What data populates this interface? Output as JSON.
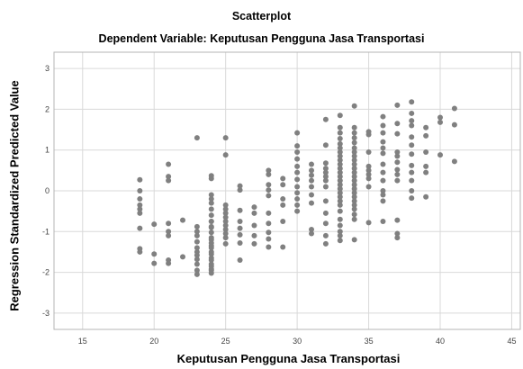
{
  "chart_data": {
    "type": "scatter",
    "title": "Scatterplot",
    "subtitle": "Dependent Variable: Keputusan Pengguna Jasa Transportasi",
    "xlabel": "Keputusan Pengguna Jasa Transportasi",
    "ylabel": "Regression Standardized Predicted Value",
    "xlim": [
      13,
      45.6
    ],
    "ylim": [
      -3.4,
      3.4
    ],
    "xticks": [
      "15",
      "20",
      "25",
      "30",
      "35",
      "40",
      "45"
    ],
    "yticks": [
      "3",
      "2",
      "1",
      "0",
      "-1",
      "-2",
      "-3"
    ],
    "grid": true,
    "point_color": "#808080",
    "points": [
      [
        19,
        0.27
      ],
      [
        19,
        0.0
      ],
      [
        19,
        -0.2
      ],
      [
        19,
        -0.35
      ],
      [
        19,
        -0.45
      ],
      [
        19,
        -0.55
      ],
      [
        19,
        -0.92
      ],
      [
        19,
        -1.42
      ],
      [
        19,
        -1.5
      ],
      [
        20,
        -0.82
      ],
      [
        20,
        -1.55
      ],
      [
        20,
        -1.78
      ],
      [
        21,
        0.65
      ],
      [
        21,
        0.35
      ],
      [
        21,
        0.25
      ],
      [
        21,
        -0.8
      ],
      [
        21,
        -1.0
      ],
      [
        21,
        -1.1
      ],
      [
        21,
        -1.7
      ],
      [
        21,
        -1.78
      ],
      [
        22,
        -0.72
      ],
      [
        22,
        -1.62
      ],
      [
        23,
        1.3
      ],
      [
        23,
        -0.88
      ],
      [
        23,
        -1.0
      ],
      [
        23,
        -1.1
      ],
      [
        23,
        -1.25
      ],
      [
        23,
        -1.4
      ],
      [
        23,
        -1.5
      ],
      [
        23,
        -1.58
      ],
      [
        23,
        -1.68
      ],
      [
        23,
        -1.8
      ],
      [
        23,
        -1.95
      ],
      [
        23,
        -2.05
      ],
      [
        24,
        -0.75
      ],
      [
        24,
        -0.88
      ],
      [
        24,
        -1.2
      ],
      [
        24,
        -1.35
      ],
      [
        24,
        -1.5
      ],
      [
        24,
        -1.65
      ],
      [
        24,
        -1.8
      ],
      [
        24,
        -1.92
      ],
      [
        24,
        -2.02
      ],
      [
        24,
        0.37
      ],
      [
        24,
        0.3
      ],
      [
        24,
        -0.1
      ],
      [
        24,
        -0.2
      ],
      [
        24,
        -0.3
      ],
      [
        24,
        -0.45
      ],
      [
        24,
        -0.6
      ],
      [
        24,
        -0.75
      ],
      [
        24,
        -0.9
      ],
      [
        24,
        -1.02
      ],
      [
        24,
        -1.15
      ],
      [
        24,
        -1.28
      ],
      [
        24,
        -1.4
      ],
      [
        24,
        -1.55
      ],
      [
        24,
        -1.7
      ],
      [
        24,
        -1.85
      ],
      [
        24,
        -1.95
      ],
      [
        25,
        1.3
      ],
      [
        25,
        0.88
      ],
      [
        25,
        -0.35
      ],
      [
        25,
        -0.45
      ],
      [
        25,
        -0.55
      ],
      [
        25,
        -0.65
      ],
      [
        25,
        -0.75
      ],
      [
        25,
        -0.85
      ],
      [
        25,
        -0.95
      ],
      [
        25,
        -1.05
      ],
      [
        25,
        -1.15
      ],
      [
        25,
        -1.3
      ],
      [
        26,
        0.12
      ],
      [
        26,
        0.02
      ],
      [
        26,
        -0.48
      ],
      [
        26,
        -0.75
      ],
      [
        26,
        -0.92
      ],
      [
        26,
        -1.08
      ],
      [
        26,
        -1.28
      ],
      [
        26,
        -1.7
      ],
      [
        27,
        -0.4
      ],
      [
        27,
        -0.55
      ],
      [
        27,
        -0.85
      ],
      [
        27,
        -1.1
      ],
      [
        27,
        -1.3
      ],
      [
        28,
        0.5
      ],
      [
        28,
        0.4
      ],
      [
        28,
        0.15
      ],
      [
        28,
        0.02
      ],
      [
        28,
        -0.12
      ],
      [
        28,
        -0.55
      ],
      [
        28,
        -0.8
      ],
      [
        28,
        -1.02
      ],
      [
        28,
        -1.18
      ],
      [
        28,
        -1.38
      ],
      [
        29,
        0.3
      ],
      [
        29,
        0.15
      ],
      [
        29,
        -0.2
      ],
      [
        29,
        -0.35
      ],
      [
        29,
        -0.75
      ],
      [
        29,
        -1.38
      ],
      [
        30,
        1.42
      ],
      [
        30,
        1.1
      ],
      [
        30,
        0.95
      ],
      [
        30,
        0.78
      ],
      [
        30,
        0.6
      ],
      [
        30,
        0.45
      ],
      [
        30,
        0.28
      ],
      [
        30,
        0.1
      ],
      [
        30,
        -0.05
      ],
      [
        30,
        -0.2
      ],
      [
        30,
        -0.35
      ],
      [
        30,
        -0.5
      ],
      [
        31,
        0.65
      ],
      [
        31,
        0.5
      ],
      [
        31,
        0.38
      ],
      [
        31,
        0.25
      ],
      [
        31,
        0.1
      ],
      [
        31,
        -0.1
      ],
      [
        31,
        -0.3
      ],
      [
        31,
        -0.95
      ],
      [
        31,
        -1.05
      ],
      [
        32,
        1.12
      ],
      [
        32,
        0.55
      ],
      [
        32,
        0.45
      ],
      [
        32,
        0.35
      ],
      [
        32,
        0.25
      ],
      [
        32,
        0.1
      ],
      [
        32,
        -0.25
      ],
      [
        32,
        -0.8
      ],
      [
        32,
        -1.1
      ],
      [
        32,
        -1.3
      ],
      [
        33,
        1.28
      ],
      [
        33,
        1.15
      ],
      [
        33,
        1.05
      ],
      [
        33,
        0.95
      ],
      [
        33,
        0.85
      ],
      [
        33,
        0.75
      ],
      [
        33,
        0.65
      ],
      [
        33,
        0.55
      ],
      [
        33,
        0.45
      ],
      [
        33,
        0.35
      ],
      [
        33,
        0.25
      ],
      [
        33,
        0.15
      ],
      [
        33,
        0.05
      ],
      [
        33,
        -0.05
      ],
      [
        33,
        -0.15
      ],
      [
        33,
        -0.25
      ],
      [
        33,
        -0.35
      ],
      [
        33,
        -0.5
      ],
      [
        33,
        -0.7
      ],
      [
        33,
        -0.85
      ],
      [
        33,
        -1.0
      ],
      [
        33,
        -1.1
      ],
      [
        33,
        -1.22
      ],
      [
        32,
        1.75
      ],
      [
        32,
        0.68
      ],
      [
        32,
        -0.55
      ],
      [
        34,
        2.08
      ],
      [
        34,
        1.55
      ],
      [
        34,
        1.42
      ],
      [
        34,
        1.3
      ],
      [
        34,
        1.18
      ],
      [
        34,
        1.05
      ],
      [
        34,
        0.95
      ],
      [
        34,
        0.85
      ],
      [
        34,
        0.75
      ],
      [
        34,
        0.65
      ],
      [
        34,
        0.55
      ],
      [
        34,
        0.45
      ],
      [
        34,
        0.35
      ],
      [
        34,
        0.25
      ],
      [
        34,
        0.15
      ],
      [
        34,
        0.05
      ],
      [
        34,
        -0.05
      ],
      [
        34,
        -0.15
      ],
      [
        34,
        -0.25
      ],
      [
        34,
        -0.35
      ],
      [
        34,
        -0.45
      ],
      [
        34,
        -0.58
      ],
      [
        34,
        -0.7
      ],
      [
        34,
        -1.2
      ],
      [
        33,
        1.85
      ],
      [
        33,
        1.55
      ],
      [
        33,
        1.42
      ],
      [
        35,
        1.45
      ],
      [
        35,
        1.38
      ],
      [
        35,
        0.95
      ],
      [
        35,
        0.6
      ],
      [
        35,
        0.5
      ],
      [
        35,
        0.4
      ],
      [
        35,
        0.3
      ],
      [
        35,
        0.1
      ],
      [
        35,
        -0.78
      ],
      [
        36,
        1.82
      ],
      [
        36,
        1.6
      ],
      [
        36,
        1.42
      ],
      [
        36,
        1.2
      ],
      [
        36,
        1.05
      ],
      [
        36,
        0.92
      ],
      [
        36,
        0.65
      ],
      [
        36,
        0.45
      ],
      [
        36,
        0.25
      ],
      [
        36,
        0.0
      ],
      [
        36,
        -0.1
      ],
      [
        36,
        -0.25
      ],
      [
        36,
        -0.75
      ],
      [
        37,
        2.1
      ],
      [
        37,
        1.65
      ],
      [
        37,
        1.4
      ],
      [
        37,
        0.95
      ],
      [
        37,
        0.85
      ],
      [
        37,
        0.7
      ],
      [
        37,
        0.52
      ],
      [
        37,
        0.4
      ],
      [
        37,
        0.25
      ],
      [
        37,
        -0.72
      ],
      [
        37,
        -1.05
      ],
      [
        37,
        -1.15
      ],
      [
        38,
        2.18
      ],
      [
        38,
        1.9
      ],
      [
        38,
        1.72
      ],
      [
        38,
        1.6
      ],
      [
        38,
        1.32
      ],
      [
        38,
        1.12
      ],
      [
        38,
        0.9
      ],
      [
        38,
        0.62
      ],
      [
        38,
        0.45
      ],
      [
        38,
        0.25
      ],
      [
        38,
        0.0
      ],
      [
        38,
        -0.18
      ],
      [
        39,
        1.55
      ],
      [
        39,
        1.35
      ],
      [
        39,
        0.95
      ],
      [
        39,
        0.6
      ],
      [
        39,
        0.45
      ],
      [
        39,
        -0.15
      ],
      [
        40,
        1.8
      ],
      [
        40,
        1.68
      ],
      [
        40,
        0.88
      ],
      [
        41,
        2.02
      ],
      [
        41,
        1.62
      ],
      [
        41,
        0.72
      ]
    ]
  }
}
